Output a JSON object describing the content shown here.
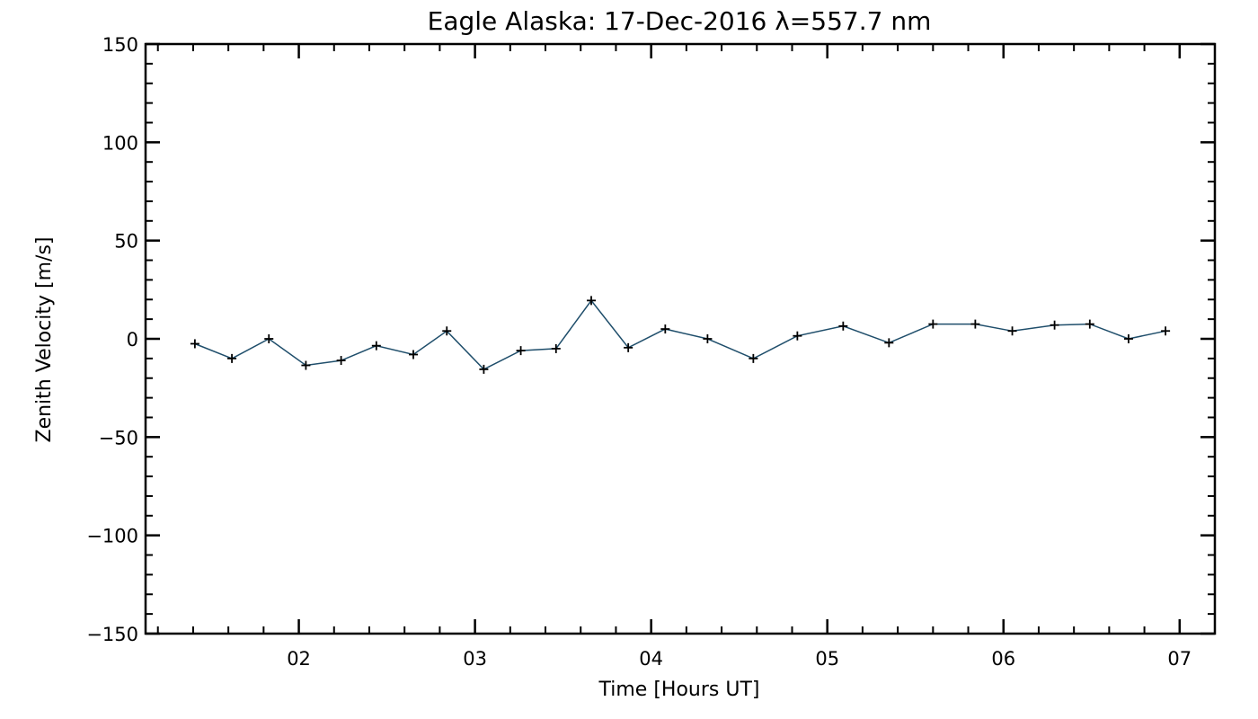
{
  "chart_data": {
    "type": "line",
    "title": "Eagle Alaska: 17-Dec-2016 λ=557.7 nm",
    "xlabel": "Time [Hours UT]",
    "ylabel": "Zenith Velocity [m/s]",
    "xlim": [
      1.13,
      7.2
    ],
    "ylim": [
      -150,
      150
    ],
    "xticks": [
      2,
      3,
      4,
      5,
      6,
      7
    ],
    "xtick_labels": [
      "02",
      "03",
      "04",
      "05",
      "06",
      "07"
    ],
    "yticks": [
      -150,
      -100,
      -50,
      0,
      50,
      100,
      150
    ],
    "ytick_labels": [
      "−150",
      "−100",
      "−50",
      "0",
      "50",
      "100",
      "150"
    ],
    "grid": false,
    "line_color": "#1f4e6b",
    "marker": "+",
    "series": [
      {
        "x": [
          1.41,
          1.62,
          1.83,
          2.04,
          2.24,
          2.44,
          2.65,
          2.84,
          3.05,
          3.26,
          3.46,
          3.66,
          3.87,
          4.08,
          4.32,
          4.58,
          4.83,
          5.09,
          5.35,
          5.6,
          5.84,
          6.05,
          6.29,
          6.49,
          6.71,
          6.92
        ],
        "y": [
          -2.5,
          -10,
          0,
          -13.5,
          -11,
          -3.5,
          -8,
          4,
          -15.5,
          -6,
          -5,
          19.5,
          -4.5,
          5,
          0,
          -10,
          1.5,
          6.5,
          -2,
          7.5,
          7.5,
          4,
          7,
          7.5,
          0,
          4
        ]
      }
    ]
  }
}
